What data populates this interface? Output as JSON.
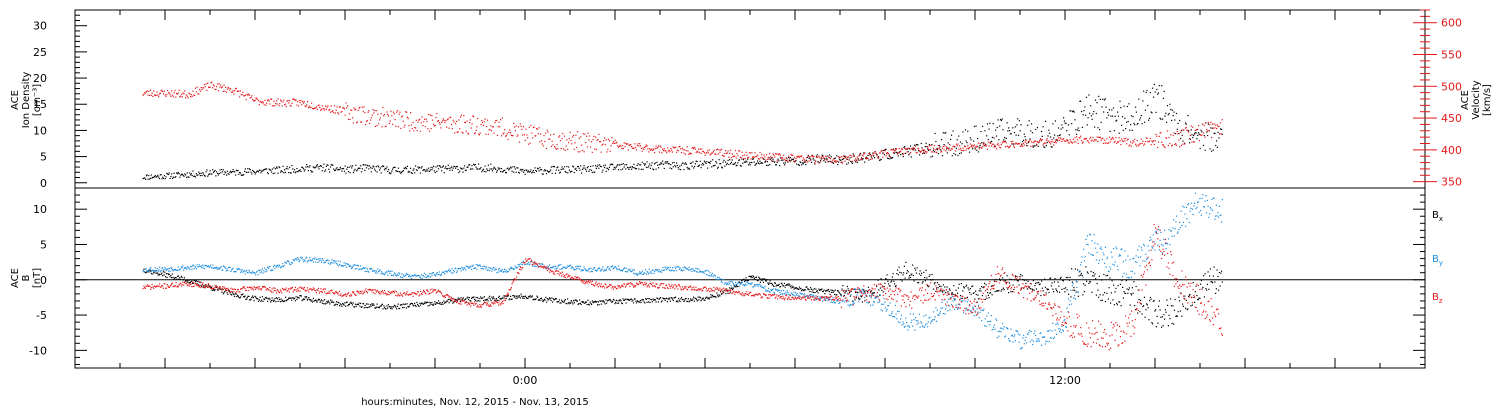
{
  "chart_data": [
    {
      "type": "scatter",
      "panel": "top",
      "title": "",
      "xlabel": "",
      "ylabel_left_lines": [
        "ACE",
        "Ion Density",
        "[cm⁻³]"
      ],
      "ylabel_right_lines": [
        "ACE",
        "Velocity",
        "[km/s]"
      ],
      "xlim_hours": [
        -10,
        20
      ],
      "ylim_left": [
        -1,
        33
      ],
      "ylim_right": [
        340,
        620
      ],
      "yticks_left": [
        0,
        5,
        10,
        15,
        20,
        25,
        30
      ],
      "yticks_right": [
        350,
        400,
        450,
        500,
        550,
        600
      ],
      "colors": {
        "density": "#000000",
        "velocity": "#e41a1c"
      },
      "series": [
        {
          "axis": "left",
          "color": "#000000",
          "x": [
            -8.5,
            -8,
            -7.5,
            -7,
            -6.5,
            -6,
            -5.5,
            -5,
            -4.5,
            -4,
            -3.5,
            -3,
            -2.5,
            -2,
            -1.5,
            -1,
            -0.5,
            0,
            0.5,
            1,
            1.5,
            2,
            2.5,
            3,
            3.5,
            4,
            4.5,
            5,
            5.5,
            6,
            6.5,
            7,
            7.5,
            8,
            8.5,
            9,
            9.5,
            10,
            10.5,
            11,
            11.5,
            12,
            12.5,
            13,
            13.5,
            14,
            14.5,
            15,
            15.5
          ],
          "y": [
            1.2,
            1.4,
            1.7,
            2.0,
            2.1,
            2.3,
            2.5,
            2.8,
            3.0,
            2.6,
            2.9,
            2.5,
            2.6,
            2.7,
            2.8,
            3.0,
            2.8,
            2.2,
            2.5,
            2.6,
            2.7,
            3.0,
            3.2,
            3.5,
            3.3,
            3.6,
            3.8,
            4.0,
            4.2,
            4.3,
            4.6,
            4.4,
            5.0,
            5.5,
            6.0,
            7.0,
            7.5,
            8.5,
            9.5,
            10.0,
            9.0,
            10.5,
            14.0,
            13.0,
            12.0,
            17.0,
            11.0,
            9.0,
            8.5
          ]
        },
        {
          "axis": "right",
          "color": "#e41a1c",
          "x": [
            -8.5,
            -8,
            -7.5,
            -7,
            -6.5,
            -6,
            -5.5,
            -5,
            -4.5,
            -4,
            -3.5,
            -3,
            -2.5,
            -2,
            -1.5,
            -1,
            -0.5,
            0,
            0.5,
            1,
            1.5,
            2,
            2.5,
            3,
            3.5,
            4,
            4.5,
            5,
            5.5,
            6,
            6.5,
            7,
            7.5,
            8,
            8.5,
            9,
            9.5,
            10,
            10.5,
            11,
            11.5,
            12,
            12.5,
            13,
            13.5,
            14,
            14.5,
            15,
            15.5
          ],
          "y": [
            490,
            490,
            488,
            502,
            495,
            478,
            475,
            475,
            468,
            461,
            455,
            450,
            446,
            444,
            442,
            440,
            435,
            425,
            418,
            415,
            411,
            408,
            405,
            402,
            400,
            398,
            395,
            392,
            390,
            388,
            386,
            385,
            390,
            395,
            400,
            402,
            404,
            406,
            408,
            411,
            413,
            415,
            418,
            416,
            412,
            415,
            419,
            429,
            439
          ]
        }
      ]
    },
    {
      "type": "scatter",
      "panel": "bottom",
      "title": "",
      "xlabel": "hours:minutes, Nov. 12, 2015 - Nov. 13, 2015",
      "ylabel_lines": [
        "ACE",
        "B",
        "[nT]"
      ],
      "xlim_hours": [
        -10,
        20
      ],
      "ylim": [
        -12.5,
        13
      ],
      "yticks": [
        -10,
        -5,
        0,
        5,
        10
      ],
      "xtick_labels": [
        {
          "hour": 0,
          "label": "0:00"
        },
        {
          "hour": 12,
          "label": "12:00"
        }
      ],
      "legend_placement": "right",
      "colors": {
        "Bx": "#000000",
        "By": "#1f8fe0",
        "Bz": "#e41a1c"
      },
      "series": [
        {
          "name_base": "B",
          "name_sub": "x",
          "color": "#000000",
          "x": [
            -8.5,
            -8,
            -7.5,
            -7,
            -6.5,
            -6,
            -5.5,
            -5,
            -4.5,
            -4,
            -3.5,
            -3,
            -2.5,
            -2,
            -1.5,
            -1,
            -0.5,
            0,
            0.5,
            1,
            1.5,
            2,
            2.5,
            3,
            3.5,
            4,
            4.5,
            5,
            5.5,
            6,
            6.5,
            7,
            7.5,
            8,
            8.5,
            9,
            9.5,
            10,
            10.5,
            11,
            11.5,
            12,
            12.5,
            13,
            13.5,
            14,
            14.5,
            15,
            15.5
          ],
          "y": [
            1.5,
            0.8,
            0.0,
            -1.0,
            -2.0,
            -2.6,
            -2.8,
            -2.5,
            -3.0,
            -3.4,
            -3.6,
            -3.8,
            -3.5,
            -3.3,
            -2.8,
            -2.6,
            -2.5,
            -2.2,
            -2.8,
            -3.0,
            -3.2,
            -3.0,
            -2.9,
            -2.8,
            -2.7,
            -2.6,
            -1.5,
            0.5,
            -0.5,
            -1.0,
            -1.5,
            -1.8,
            -2.5,
            -0.5,
            1.5,
            0.0,
            -1.5,
            -2.0,
            -1.0,
            0.0,
            -1.0,
            -0.5,
            0.0,
            -1.5,
            -2.0,
            -5.0,
            -4.0,
            -0.5,
            0.5
          ]
        },
        {
          "name_base": "B",
          "name_sub": "y",
          "color": "#1f8fe0",
          "x": [
            -8.5,
            -8,
            -7.5,
            -7,
            -6.5,
            -6,
            -5.5,
            -5,
            -4.5,
            -4,
            -3.5,
            -3,
            -2.5,
            -2,
            -1.5,
            -1,
            -0.5,
            0,
            0.5,
            1,
            1.5,
            2,
            2.5,
            3,
            3.5,
            4,
            4.5,
            5,
            5.5,
            6,
            6.5,
            7,
            7.5,
            8,
            8.5,
            9,
            9.5,
            10,
            10.5,
            11,
            11.5,
            12,
            12.5,
            13,
            13.5,
            14,
            14.5,
            15,
            15.5
          ],
          "y": [
            1.5,
            1.6,
            1.8,
            2.0,
            1.5,
            1.0,
            2.0,
            3.0,
            2.8,
            2.2,
            1.5,
            1.0,
            0.5,
            0.8,
            1.5,
            2.0,
            1.2,
            2.5,
            2.0,
            1.8,
            1.5,
            1.8,
            1.0,
            1.5,
            1.7,
            1.2,
            -0.5,
            -0.5,
            -1.5,
            -2.0,
            -2.5,
            -3.0,
            -2.0,
            -3.5,
            -6.0,
            -5.5,
            -3.0,
            -4.0,
            -7.0,
            -8.5,
            -8.0,
            -6.0,
            5.0,
            3.0,
            2.0,
            5.0,
            8.0,
            11.0,
            9.5
          ]
        },
        {
          "name_base": "B",
          "name_sub": "z",
          "color": "#e41a1c",
          "x": [
            -8.5,
            -8,
            -7.5,
            -7,
            -6.5,
            -6,
            -5.5,
            -5,
            -4.5,
            -4,
            -3.5,
            -3,
            -2.5,
            -2,
            -1.5,
            -1,
            -0.5,
            0,
            0.5,
            1,
            1.5,
            2,
            2.5,
            3,
            3.5,
            4,
            4.5,
            5,
            5.5,
            6,
            6.5,
            7,
            7.5,
            8,
            8.5,
            9,
            9.5,
            10,
            10.5,
            11,
            11.5,
            12,
            12.5,
            13,
            13.5,
            14,
            14.5,
            15,
            15.5
          ],
          "y": [
            -1.0,
            -0.8,
            -0.5,
            -0.8,
            -1.5,
            -1.0,
            -1.5,
            -1.2,
            -1.5,
            -2.0,
            -1.5,
            -1.8,
            -2.0,
            -1.5,
            -3.0,
            -3.5,
            -3.2,
            3.0,
            1.5,
            0.5,
            -0.5,
            -1.0,
            -0.5,
            -0.8,
            -1.0,
            -1.2,
            -1.5,
            -2.0,
            -2.3,
            -2.5,
            -2.5,
            -2.6,
            -2.0,
            -1.5,
            -3.0,
            -1.5,
            -3.0,
            -4.0,
            1.0,
            -1.0,
            -2.5,
            -6.0,
            -7.5,
            -8.0,
            -6.0,
            7.0,
            0.0,
            -3.0,
            -6.0
          ]
        }
      ]
    }
  ]
}
